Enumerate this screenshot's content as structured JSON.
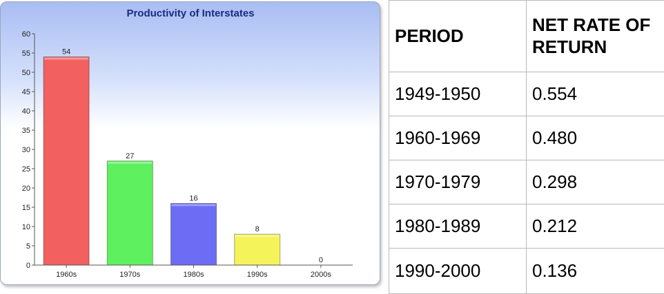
{
  "chart_data": {
    "type": "bar",
    "title": "Productivity of Interstates",
    "categories": [
      "1960s",
      "1970s",
      "1980s",
      "1990s",
      "2000s"
    ],
    "values": [
      54,
      27,
      16,
      8,
      0
    ],
    "data_labels": [
      "54",
      "27",
      "16",
      "8",
      "0"
    ],
    "colors": [
      "#f26060",
      "#5ef05e",
      "#6c6cf4",
      "#f4f45a",
      "#bbbbbb"
    ],
    "ylim": [
      0,
      60
    ],
    "yticks": [
      0,
      5,
      10,
      15,
      20,
      25,
      30,
      35,
      40,
      45,
      50,
      55,
      60
    ],
    "grid": false,
    "legend": "none"
  },
  "table": {
    "headers": [
      "PERIOD",
      "NET RATE OF RETURN"
    ],
    "rows": [
      [
        "1949-1950",
        "0.554"
      ],
      [
        "1960-1969",
        "0.480"
      ],
      [
        "1970-1979",
        "0.298"
      ],
      [
        "1980-1989",
        "0.212"
      ],
      [
        "1990-2000",
        "0.136"
      ]
    ]
  }
}
